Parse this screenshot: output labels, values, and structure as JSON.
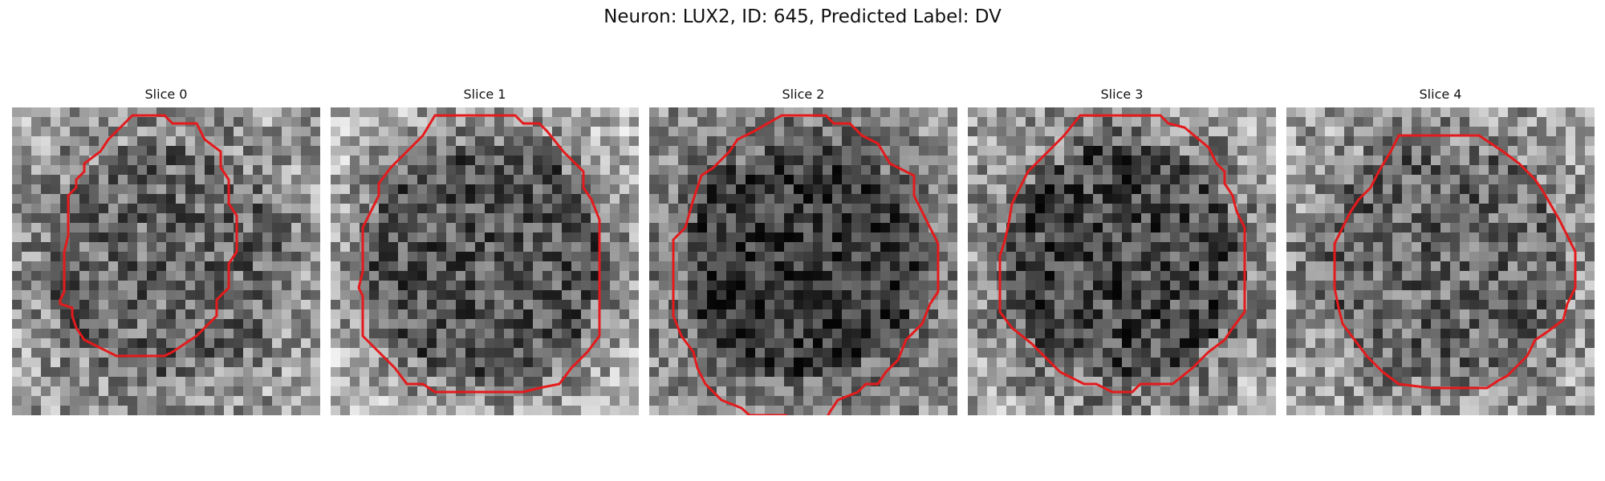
{
  "figure": {
    "title": "Neuron: LUX2, ID: 645, Predicted Label: DV"
  },
  "panels": [
    {
      "title": "Slice 0",
      "seed": 11,
      "base": 128,
      "spread": 70,
      "center_dark": 22,
      "edge_bright": 30
    },
    {
      "title": "Slice 1",
      "seed": 23,
      "base": 120,
      "spread": 65,
      "center_dark": 35,
      "edge_bright": 60
    },
    {
      "title": "Slice 2",
      "seed": 37,
      "base": 105,
      "spread": 60,
      "center_dark": 45,
      "edge_bright": 35
    },
    {
      "title": "Slice 3",
      "seed": 49,
      "base": 112,
      "spread": 70,
      "center_dark": 40,
      "edge_bright": 50
    },
    {
      "title": "Slice 4",
      "seed": 61,
      "base": 125,
      "spread": 70,
      "center_dark": 22,
      "edge_bright": 35
    }
  ],
  "overlay": {
    "contour_color": "#e41a1c"
  }
}
